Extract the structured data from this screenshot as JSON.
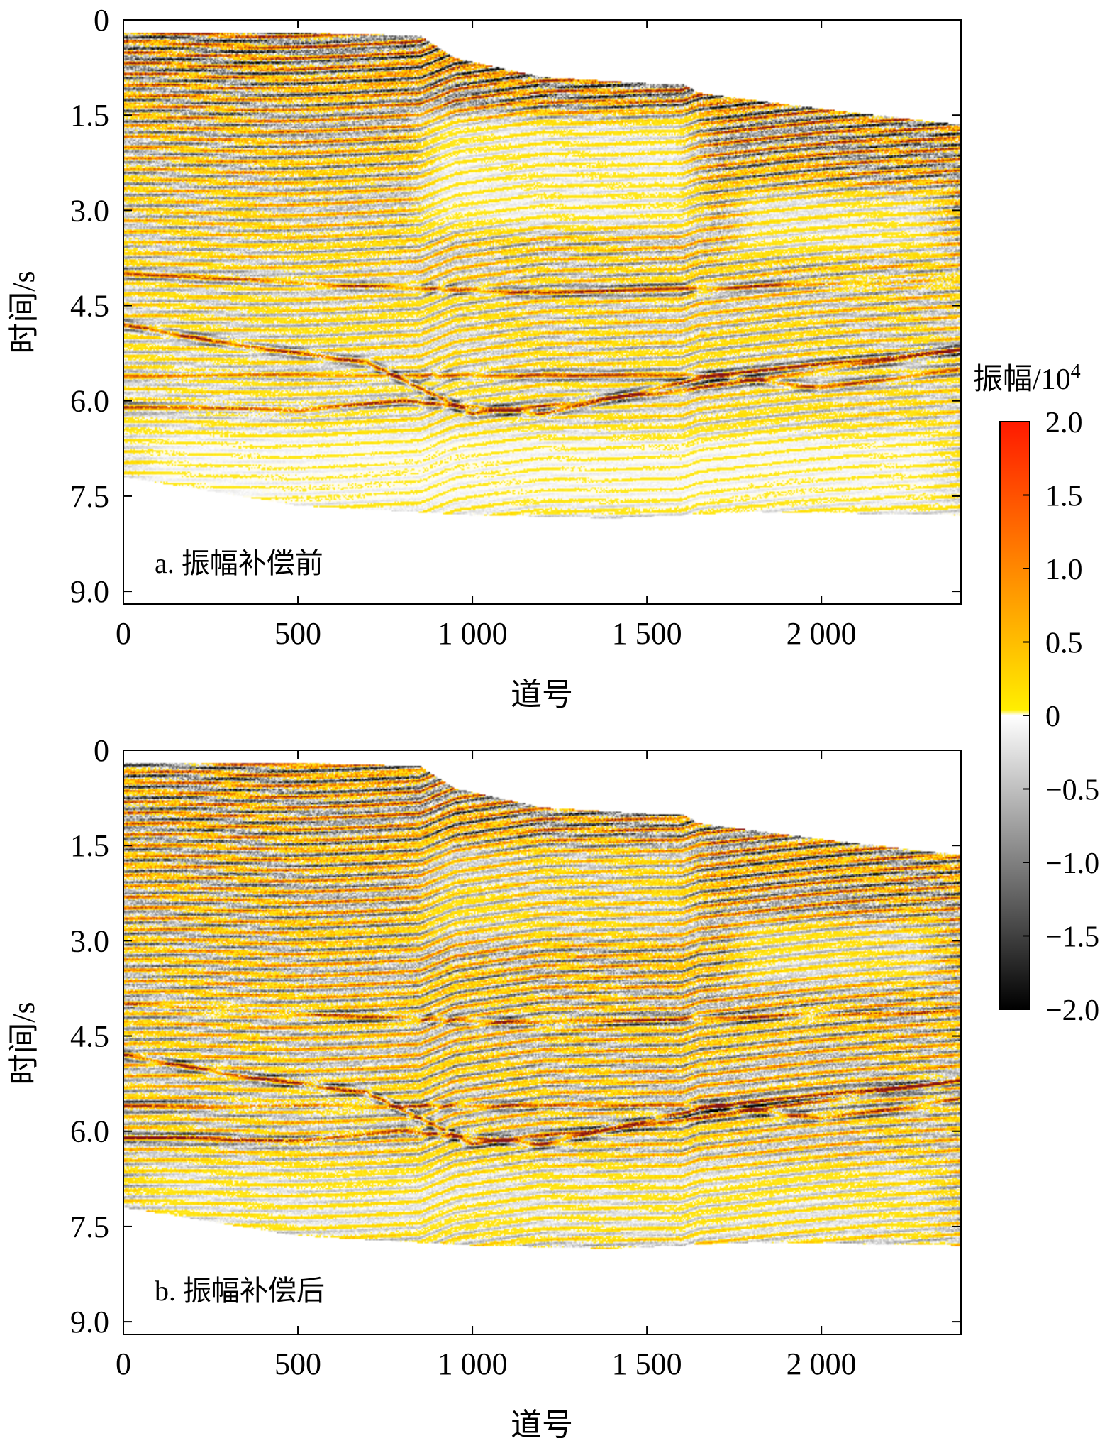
{
  "chart_data": [
    {
      "type": "heatmap",
      "panel_label": "a. 振幅补偿前",
      "xlabel": "道号",
      "ylabel": "时间/s",
      "xlim": [
        0,
        2400
      ],
      "ylim": [
        9.2,
        0
      ],
      "x_ticks": [
        0,
        500,
        1000,
        1500,
        2000
      ],
      "x_tick_labels": [
        "0",
        "500",
        "1 000",
        "1 500",
        "2 000"
      ],
      "y_ticks": [
        0,
        1.5,
        3.0,
        4.5,
        6.0,
        7.5,
        9.0
      ],
      "y_tick_labels": [
        "0",
        "1.5",
        "3.0",
        "4.5",
        "6.0",
        "7.5",
        "9.0"
      ],
      "seafloor_time": [
        [
          0,
          0.2
        ],
        [
          500,
          0.2
        ],
        [
          850,
          0.25
        ],
        [
          950,
          0.6
        ],
        [
          1200,
          0.9
        ],
        [
          1500,
          1.0
        ],
        [
          1600,
          1.0
        ],
        [
          1650,
          1.15
        ],
        [
          2000,
          1.4
        ],
        [
          2400,
          1.65
        ]
      ],
      "data_bottom_time": [
        [
          0,
          7.2
        ],
        [
          500,
          7.65
        ],
        [
          1000,
          7.8
        ],
        [
          1400,
          7.85
        ],
        [
          1800,
          7.75
        ],
        [
          2400,
          7.8
        ]
      ],
      "reflectors": [
        {
          "t": [
            [
              0,
              4.8
            ],
            [
              300,
              5.1
            ],
            [
              700,
              5.4
            ],
            [
              1000,
              6.2
            ],
            [
              1500,
              5.9
            ],
            [
              2400,
              5.2
            ]
          ],
          "amp": 1.8
        },
        {
          "t": [
            [
              200,
              6.1
            ],
            [
              500,
              6.15
            ],
            [
              800,
              6.0
            ],
            [
              1200,
              6.2
            ],
            [
              1700,
              5.6
            ],
            [
              2400,
              5.2
            ]
          ],
          "amp": 2.0
        },
        {
          "t": [
            [
              0,
              4.0
            ],
            [
              700,
              4.2
            ],
            [
              1200,
              4.3
            ],
            [
              2400,
              4.1
            ]
          ],
          "amp": 1.5
        },
        {
          "t": [
            [
              1700,
              5.6
            ],
            [
              2000,
              5.8
            ],
            [
              2400,
              5.5
            ]
          ],
          "amp": 1.5
        }
      ],
      "low_amp_zones": [
        {
          "x": [
            800,
            1700
          ],
          "t": [
            1.3,
            3.5
          ],
          "level": 0.25
        },
        {
          "x": [
            1700,
            2400
          ],
          "t": [
            2.5,
            3.9
          ],
          "level": 0.35
        },
        {
          "x": [
            0,
            2400
          ],
          "t": [
            6.3,
            7.9
          ],
          "level": 0.3
        }
      ]
    },
    {
      "type": "heatmap",
      "panel_label": "b. 振幅补偿后",
      "xlabel": "道号",
      "ylabel": "时间/s",
      "xlim": [
        0,
        2400
      ],
      "ylim": [
        9.2,
        0
      ],
      "x_ticks": [
        0,
        500,
        1000,
        1500,
        2000
      ],
      "x_tick_labels": [
        "0",
        "500",
        "1 000",
        "1 500",
        "2 000"
      ],
      "y_ticks": [
        0,
        1.5,
        3.0,
        4.5,
        6.0,
        7.5,
        9.0
      ],
      "y_tick_labels": [
        "0",
        "1.5",
        "3.0",
        "4.5",
        "6.0",
        "7.5",
        "9.0"
      ],
      "seafloor_time": [
        [
          0,
          0.2
        ],
        [
          500,
          0.2
        ],
        [
          850,
          0.25
        ],
        [
          950,
          0.6
        ],
        [
          1200,
          0.9
        ],
        [
          1500,
          1.0
        ],
        [
          1600,
          1.0
        ],
        [
          1650,
          1.15
        ],
        [
          2000,
          1.4
        ],
        [
          2400,
          1.65
        ]
      ],
      "data_bottom_time": [
        [
          0,
          7.2
        ],
        [
          500,
          7.65
        ],
        [
          1000,
          7.8
        ],
        [
          1400,
          7.85
        ],
        [
          1800,
          7.75
        ],
        [
          2400,
          7.8
        ]
      ],
      "reflectors": [
        {
          "t": [
            [
              0,
              4.8
            ],
            [
              300,
              5.1
            ],
            [
              700,
              5.4
            ],
            [
              1000,
              6.2
            ],
            [
              1500,
              5.9
            ],
            [
              2400,
              5.2
            ]
          ],
          "amp": 1.8
        },
        {
          "t": [
            [
              200,
              6.1
            ],
            [
              500,
              6.15
            ],
            [
              800,
              6.0
            ],
            [
              1200,
              6.2
            ],
            [
              1700,
              5.6
            ],
            [
              2400,
              5.2
            ]
          ],
          "amp": 2.0
        },
        {
          "t": [
            [
              0,
              4.0
            ],
            [
              700,
              4.2
            ],
            [
              1200,
              4.3
            ],
            [
              2400,
              4.1
            ]
          ],
          "amp": 1.5
        },
        {
          "t": [
            [
              1700,
              5.6
            ],
            [
              2000,
              5.8
            ],
            [
              2400,
              5.5
            ]
          ],
          "amp": 1.5
        }
      ],
      "low_amp_zones": [
        {
          "x": [
            800,
            1700
          ],
          "t": [
            1.3,
            3.2
          ],
          "level": 0.55
        },
        {
          "x": [
            1700,
            2400
          ],
          "t": [
            2.5,
            3.9
          ],
          "level": 0.45
        },
        {
          "x": [
            0,
            2400
          ],
          "t": [
            6.3,
            7.9
          ],
          "level": 0.55
        }
      ]
    }
  ],
  "colorbar": {
    "title": "振幅/10",
    "title_sup": "4",
    "range": [
      -2.0,
      2.0
    ],
    "ticks": [
      2.0,
      1.5,
      1.0,
      0.5,
      0,
      -0.5,
      -1.0,
      -1.5,
      -2.0
    ],
    "tick_labels": [
      "2.0",
      "1.5",
      "1.0",
      "0.5",
      "0",
      "−0.5",
      "−1.0",
      "−1.5",
      "−2.0"
    ],
    "colors": {
      "max": "#ff1a00",
      "upper": "#ff8800",
      "low_positive": "#ffee00",
      "zero": "#ffffff",
      "min": "#000000"
    }
  }
}
